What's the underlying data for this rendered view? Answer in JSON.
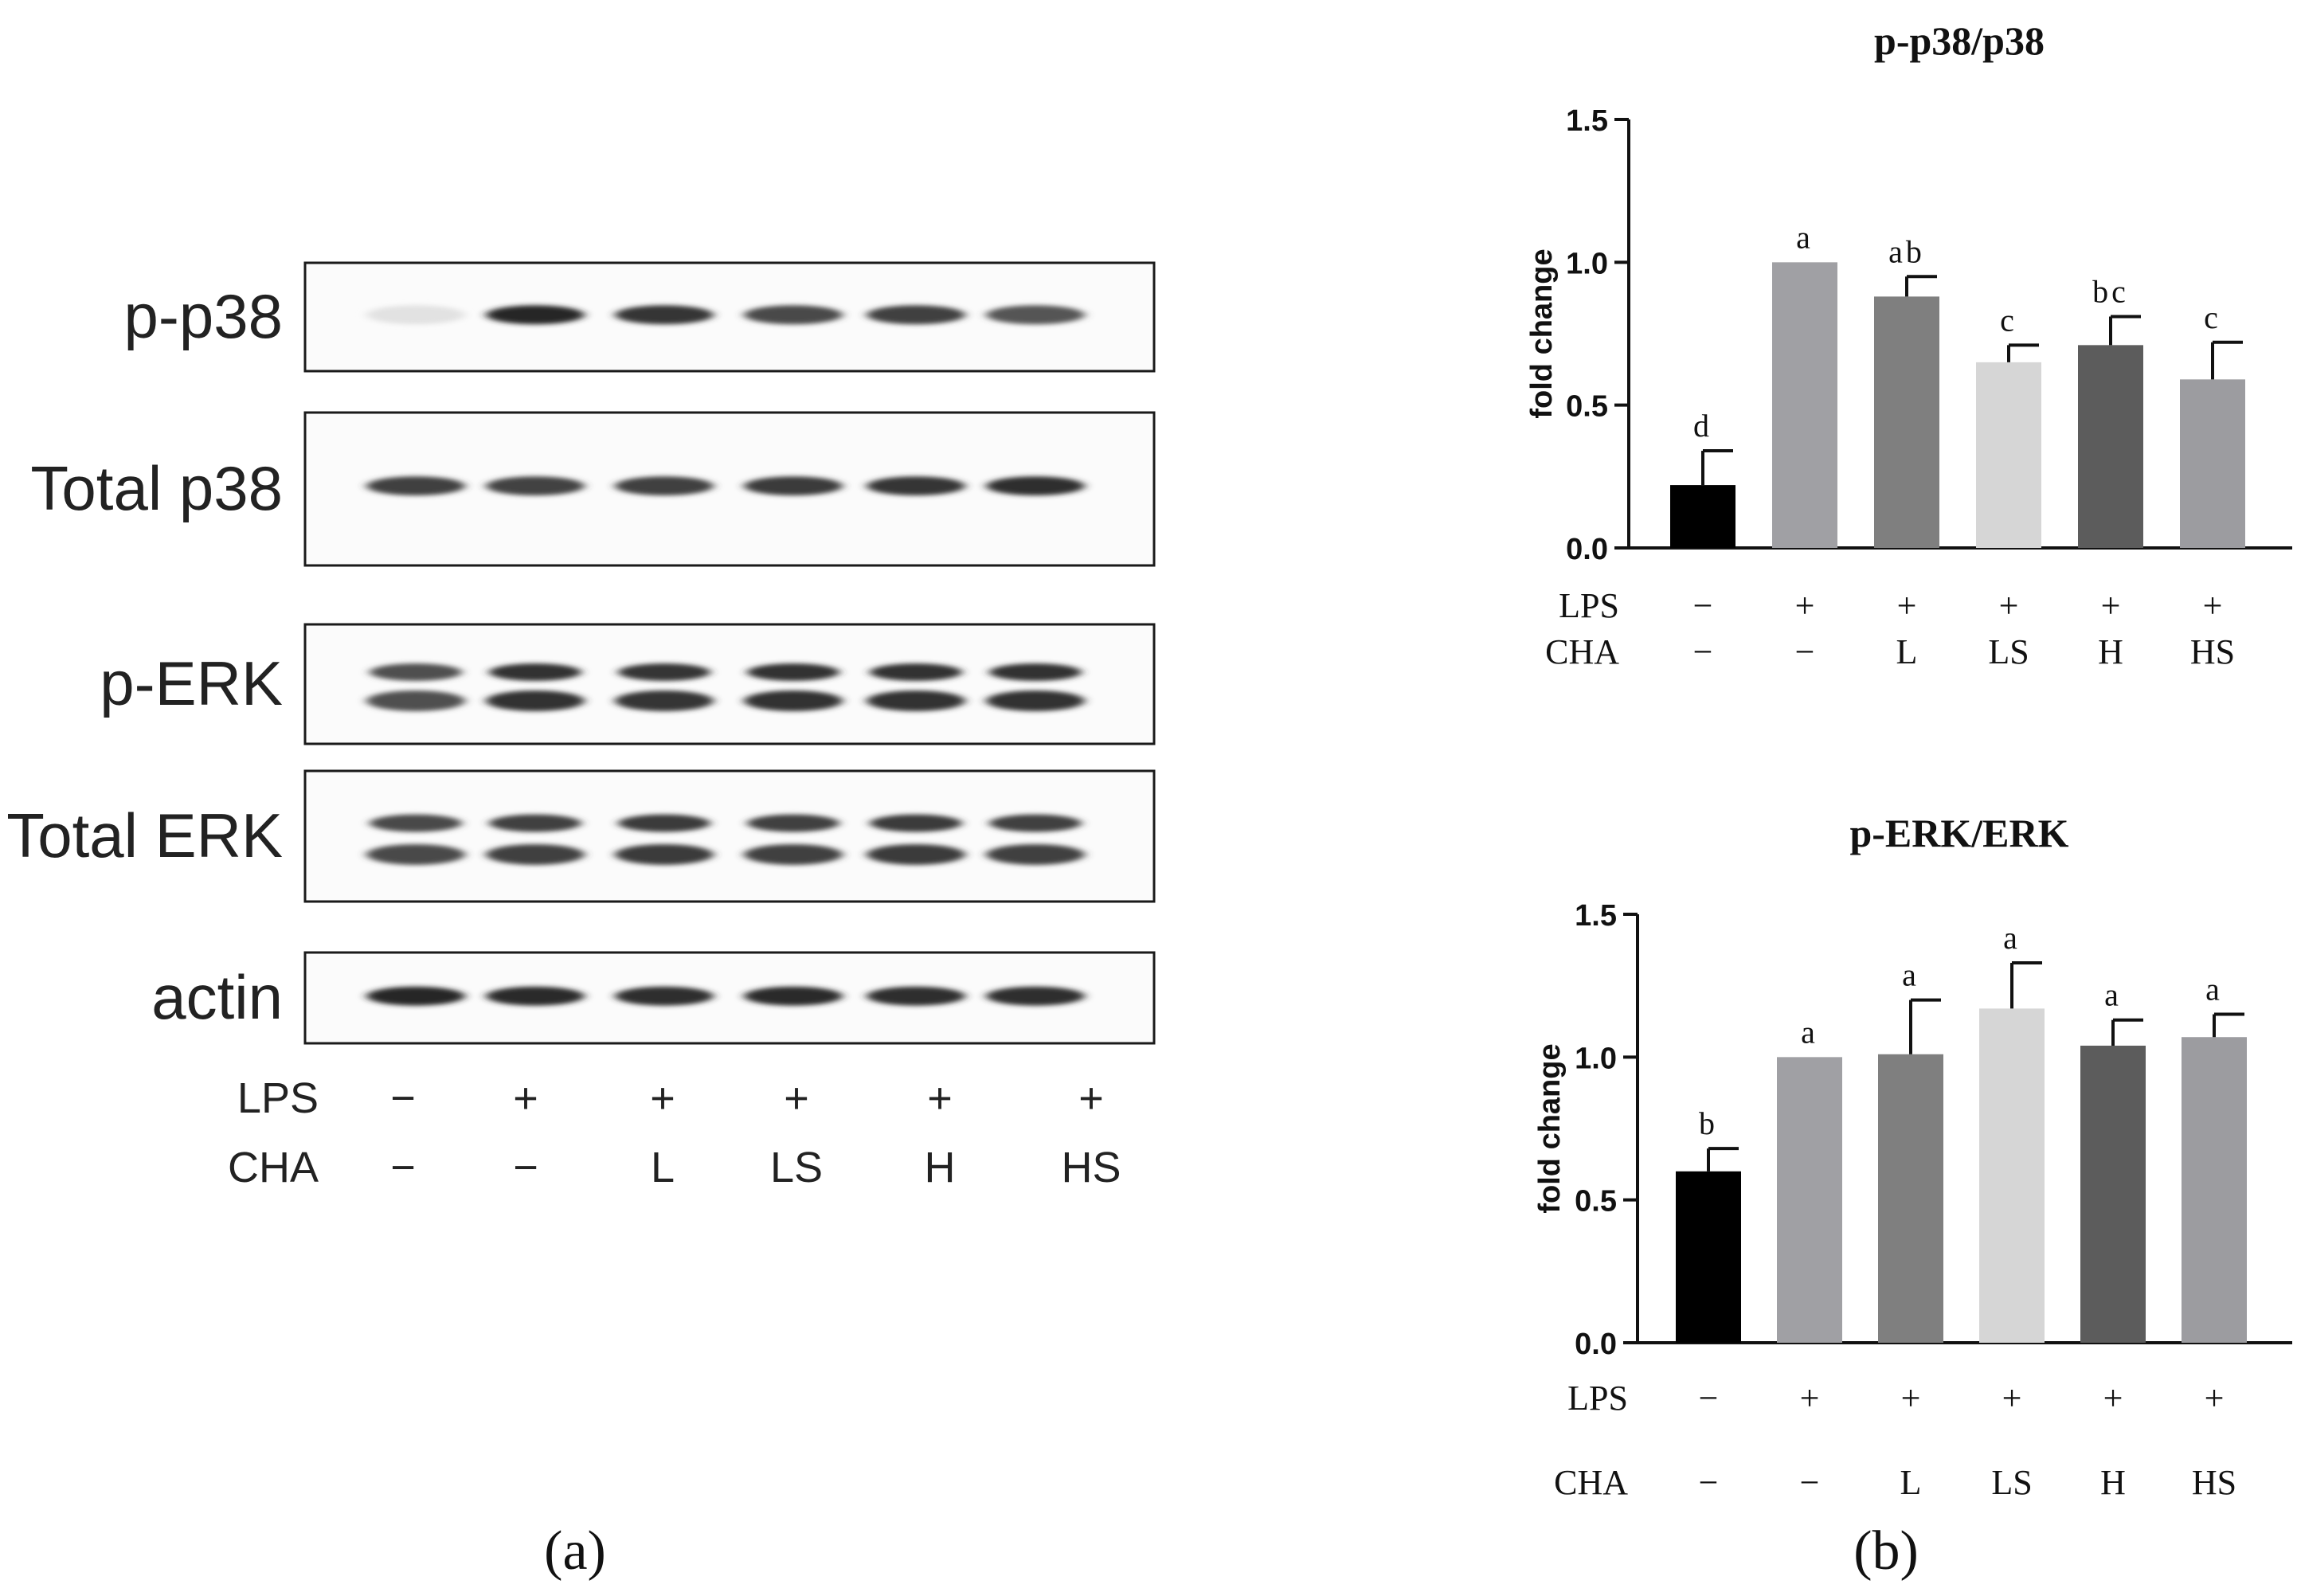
{
  "panel_a": {
    "label": "(a)",
    "blot_rows": [
      {
        "label": "p-p38",
        "bands": [
          0.04,
          0.92,
          0.84,
          0.76,
          0.8,
          0.7
        ],
        "double": false
      },
      {
        "label": "Total p38",
        "bands": [
          0.8,
          0.78,
          0.8,
          0.82,
          0.84,
          0.88
        ],
        "double": false
      },
      {
        "label": "p-ERK",
        "bands": [
          0.72,
          0.86,
          0.84,
          0.86,
          0.86,
          0.86
        ],
        "double": true
      },
      {
        "label": "Total ERK",
        "bands": [
          0.76,
          0.8,
          0.82,
          0.8,
          0.82,
          0.8
        ],
        "double": true
      },
      {
        "label": "actin",
        "bands": [
          0.92,
          0.9,
          0.88,
          0.9,
          0.88,
          0.88
        ],
        "double": false
      }
    ],
    "row_labels": {
      "lps": "LPS",
      "cha": "CHA"
    },
    "lps_values": [
      "−",
      "+",
      "+",
      "+",
      "+",
      "+"
    ],
    "cha_values": [
      "−",
      "−",
      "L",
      "LS",
      "H",
      "HS"
    ]
  },
  "panel_b": {
    "label": "(b)",
    "row_labels": {
      "lps": "LPS",
      "cha": "CHA"
    },
    "lps_values": [
      "−",
      "+",
      "+",
      "+",
      "+",
      "+"
    ],
    "cha_values": [
      "−",
      "−",
      "L",
      "LS",
      "H",
      "HS"
    ]
  },
  "chart_data": [
    {
      "type": "bar",
      "title": "p-p38/p38",
      "ylabel": "fold change",
      "xlabel": "",
      "ylim": [
        0,
        1.5
      ],
      "yticks": [
        "0.0",
        "0.5",
        "1.0",
        "1.5"
      ],
      "categories": [
        "−/−",
        "+/−",
        "+/L",
        "+/LS",
        "+/H",
        "+/HS"
      ],
      "values": [
        0.22,
        1.0,
        0.88,
        0.65,
        0.71,
        0.59
      ],
      "errors": [
        0.12,
        0.0,
        0.07,
        0.06,
        0.1,
        0.13
      ],
      "significance": [
        "d",
        "a",
        "ab",
        "c",
        "bc",
        "c"
      ],
      "colors": [
        "#000000",
        "#a0a0a4",
        "#7f7f7f",
        "#d6d6d6",
        "#5c5c5c",
        "#9c9ca0"
      ]
    },
    {
      "type": "bar",
      "title": "p-ERK/ERK",
      "ylabel": "fold change",
      "xlabel": "",
      "ylim": [
        0,
        1.5
      ],
      "yticks": [
        "0.0",
        "0.5",
        "1.0",
        "1.5"
      ],
      "categories": [
        "−/−",
        "+/−",
        "+/L",
        "+/LS",
        "+/H",
        "+/HS"
      ],
      "values": [
        0.6,
        1.0,
        1.01,
        1.17,
        1.04,
        1.07
      ],
      "errors": [
        0.08,
        0.0,
        0.19,
        0.16,
        0.09,
        0.08
      ],
      "significance": [
        "b",
        "a",
        "a",
        "a",
        "a",
        "a"
      ],
      "colors": [
        "#000000",
        "#a0a0a4",
        "#7f7f7f",
        "#d6d6d6",
        "#5c5c5c",
        "#9c9ca0"
      ]
    }
  ]
}
